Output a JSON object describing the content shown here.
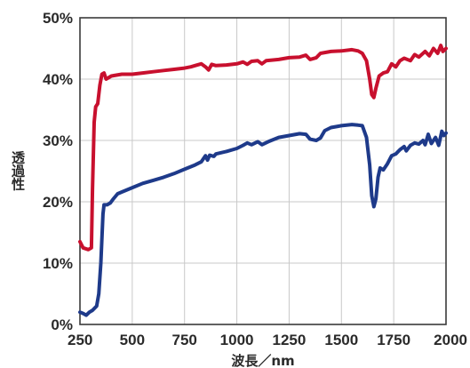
{
  "chart_data": {
    "type": "line",
    "title": "",
    "xlabel": "波長／nm",
    "ylabel": "透過性",
    "xlim": [
      250,
      2000
    ],
    "ylim": [
      0,
      50
    ],
    "x_ticks": [
      250,
      500,
      750,
      1000,
      1250,
      1500,
      1750,
      2000
    ],
    "y_ticks": [
      0,
      10,
      20,
      30,
      40,
      50
    ],
    "x_tick_labels": [
      "250",
      "500",
      "750",
      "1000",
      "1250",
      "1500",
      "1750",
      "2000"
    ],
    "y_tick_labels": [
      "0%",
      "10%",
      "20%",
      "30%",
      "40%",
      "50%"
    ],
    "grid": true,
    "series": [
      {
        "color": "#c8102e",
        "points": [
          [
            250,
            13.5
          ],
          [
            265,
            12.5
          ],
          [
            290,
            12.2
          ],
          [
            305,
            12.5
          ],
          [
            310,
            22
          ],
          [
            318,
            33
          ],
          [
            325,
            35.5
          ],
          [
            335,
            36
          ],
          [
            345,
            39
          ],
          [
            355,
            40.8
          ],
          [
            365,
            41
          ],
          [
            375,
            40
          ],
          [
            385,
            40.2
          ],
          [
            400,
            40.5
          ],
          [
            450,
            40.8
          ],
          [
            500,
            40.8
          ],
          [
            550,
            41
          ],
          [
            600,
            41.2
          ],
          [
            650,
            41.4
          ],
          [
            700,
            41.6
          ],
          [
            750,
            41.8
          ],
          [
            780,
            42
          ],
          [
            800,
            42.2
          ],
          [
            830,
            42.5
          ],
          [
            850,
            42
          ],
          [
            865,
            41.5
          ],
          [
            880,
            42.4
          ],
          [
            900,
            42.2
          ],
          [
            950,
            42.3
          ],
          [
            1000,
            42.5
          ],
          [
            1030,
            42.8
          ],
          [
            1050,
            42.4
          ],
          [
            1070,
            42.9
          ],
          [
            1100,
            43
          ],
          [
            1120,
            42.5
          ],
          [
            1140,
            43
          ],
          [
            1200,
            43.2
          ],
          [
            1250,
            43.5
          ],
          [
            1300,
            43.6
          ],
          [
            1330,
            43.9
          ],
          [
            1350,
            43.2
          ],
          [
            1380,
            43.5
          ],
          [
            1400,
            44.2
          ],
          [
            1450,
            44.5
          ],
          [
            1500,
            44.6
          ],
          [
            1550,
            44.8
          ],
          [
            1580,
            44.6
          ],
          [
            1600,
            44.2
          ],
          [
            1620,
            43
          ],
          [
            1635,
            40
          ],
          [
            1645,
            37.5
          ],
          [
            1655,
            37
          ],
          [
            1665,
            38.5
          ],
          [
            1680,
            40.5
          ],
          [
            1700,
            41
          ],
          [
            1720,
            41.2
          ],
          [
            1740,
            42.5
          ],
          [
            1760,
            42
          ],
          [
            1780,
            43
          ],
          [
            1800,
            43.4
          ],
          [
            1830,
            43
          ],
          [
            1850,
            44
          ],
          [
            1870,
            43.6
          ],
          [
            1900,
            44.5
          ],
          [
            1920,
            43.8
          ],
          [
            1940,
            45
          ],
          [
            1960,
            44.2
          ],
          [
            1975,
            45.5
          ],
          [
            1985,
            44.5
          ],
          [
            2000,
            45
          ]
        ]
      },
      {
        "color": "#1e3a8a",
        "points": [
          [
            250,
            2
          ],
          [
            265,
            1.8
          ],
          [
            280,
            1.5
          ],
          [
            295,
            2
          ],
          [
            310,
            2.3
          ],
          [
            330,
            3
          ],
          [
            340,
            5
          ],
          [
            350,
            10
          ],
          [
            360,
            18
          ],
          [
            365,
            19.5
          ],
          [
            380,
            19.5
          ],
          [
            395,
            19.8
          ],
          [
            410,
            20.5
          ],
          [
            430,
            21.3
          ],
          [
            450,
            21.6
          ],
          [
            500,
            22.3
          ],
          [
            550,
            23
          ],
          [
            600,
            23.5
          ],
          [
            650,
            24
          ],
          [
            700,
            24.6
          ],
          [
            750,
            25.3
          ],
          [
            800,
            26
          ],
          [
            830,
            26.5
          ],
          [
            850,
            27.5
          ],
          [
            860,
            26.8
          ],
          [
            870,
            27.6
          ],
          [
            890,
            27.4
          ],
          [
            900,
            27.8
          ],
          [
            950,
            28.2
          ],
          [
            1000,
            28.7
          ],
          [
            1030,
            29.2
          ],
          [
            1050,
            29.6
          ],
          [
            1070,
            29.3
          ],
          [
            1100,
            29.8
          ],
          [
            1120,
            29.3
          ],
          [
            1150,
            29.8
          ],
          [
            1200,
            30.5
          ],
          [
            1250,
            30.8
          ],
          [
            1300,
            31.1
          ],
          [
            1330,
            31
          ],
          [
            1350,
            30.2
          ],
          [
            1380,
            30
          ],
          [
            1400,
            30.4
          ],
          [
            1420,
            31.6
          ],
          [
            1450,
            32.1
          ],
          [
            1500,
            32.4
          ],
          [
            1550,
            32.6
          ],
          [
            1580,
            32.5
          ],
          [
            1600,
            32.4
          ],
          [
            1620,
            30.5
          ],
          [
            1635,
            26
          ],
          [
            1645,
            21
          ],
          [
            1655,
            19.2
          ],
          [
            1665,
            20.5
          ],
          [
            1675,
            24
          ],
          [
            1685,
            25.5
          ],
          [
            1700,
            25.2
          ],
          [
            1720,
            26.2
          ],
          [
            1740,
            27.5
          ],
          [
            1760,
            27.8
          ],
          [
            1780,
            28.5
          ],
          [
            1800,
            29
          ],
          [
            1810,
            28.3
          ],
          [
            1830,
            29.2
          ],
          [
            1850,
            29.6
          ],
          [
            1870,
            29.4
          ],
          [
            1890,
            30
          ],
          [
            1900,
            29.3
          ],
          [
            1915,
            31
          ],
          [
            1930,
            29.5
          ],
          [
            1950,
            30.5
          ],
          [
            1965,
            29.2
          ],
          [
            1980,
            31.5
          ],
          [
            1990,
            30.8
          ],
          [
            2000,
            31.2
          ]
        ]
      }
    ]
  }
}
